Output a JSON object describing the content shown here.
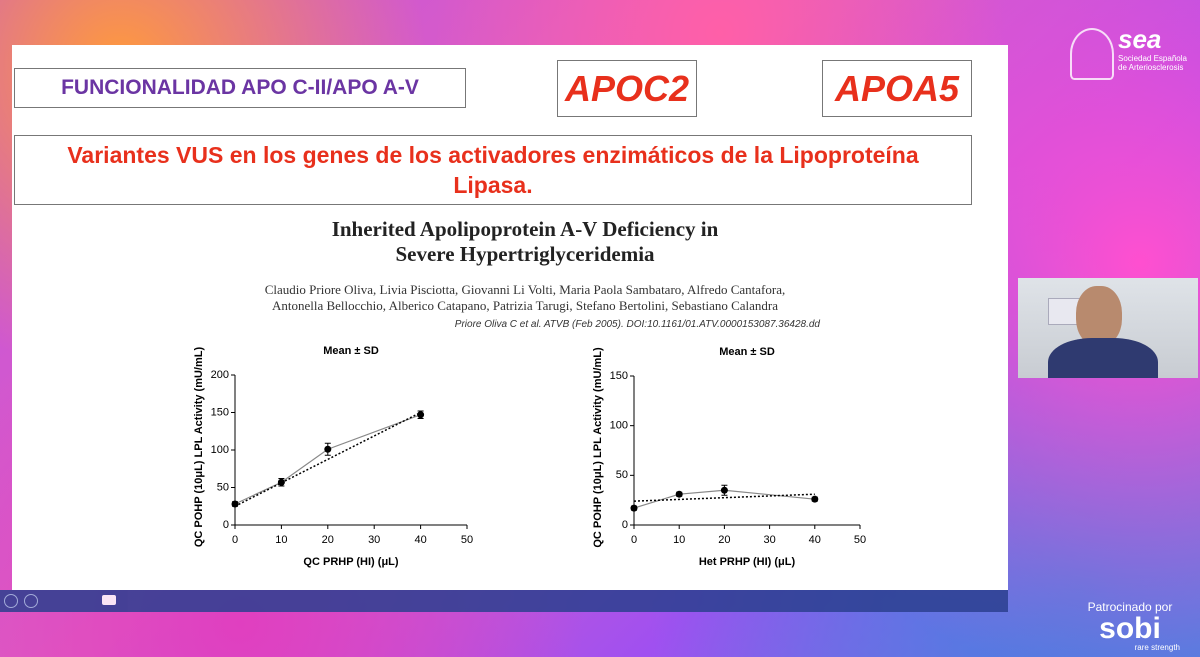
{
  "slide": {
    "section_title": "FUNCIONALIDAD APO C-II/APO A-V",
    "gene_1": "APOC2",
    "gene_2": "APOA5",
    "subtitle_lines": [
      "Variantes VUS  en los genes de los activadores enzimáticos de la Lipoproteína",
      "Lipasa."
    ],
    "paper_title_lines": [
      "Inherited Apolipoprotein A-V Deficiency in",
      "Severe Hypertriglyceridemia"
    ],
    "authors_lines": [
      "Claudio Priore Oliva, Livia Pisciotta, Giovanni Li Volti, Maria Paola Sambataro, Alfredo Cantafora,",
      "Antonella Bellocchio, Alberico Catapano, Patrizia Tarugi, Stefano Bertolini, Sebastiano Calandra"
    ],
    "citation": "Priore Oliva C et al. ATVB (Feb 2005). DOI:10.1161/01.ATV.0000153087.36428.dd"
  },
  "logo": {
    "name": "sea",
    "lines": [
      "Sociedad Española",
      "de Arteriosclerosis"
    ]
  },
  "sponsor": {
    "label": "Patrocinado por",
    "name": "sobi",
    "tagline": "rare strength"
  },
  "chart_data": [
    {
      "type": "line",
      "title": "Mean ± SD",
      "x_label": "QC PRHP (HI) (μL)",
      "y_label": "QC POHP (10μL) LPL Activity (mU/mL)",
      "x": [
        0,
        10,
        20,
        40
      ],
      "values": [
        28,
        57,
        101,
        147
      ],
      "errors": [
        3,
        5,
        8,
        5
      ],
      "color": "#888888",
      "trend": {
        "x": [
          0,
          40
        ],
        "values": [
          25,
          150
        ]
      },
      "xlim": [
        0,
        50
      ],
      "xticks": [
        0,
        10,
        20,
        30,
        40,
        50
      ],
      "ylim": [
        0,
        200
      ],
      "yticks": [
        0,
        50,
        100,
        150,
        200
      ]
    },
    {
      "type": "line",
      "title": "Mean ± SD",
      "x_label": "Het PRHP (HI) (μL)",
      "y_label": "QC POHP (10μL) LPL Activity (mU/mL)",
      "x": [
        0,
        10,
        20,
        40
      ],
      "values": [
        17,
        31,
        35,
        26
      ],
      "errors": [
        2,
        2,
        5,
        2
      ],
      "color": "#888888",
      "trend": {
        "x": [
          0,
          40
        ],
        "values": [
          24,
          31
        ]
      },
      "xlim": [
        0,
        50
      ],
      "xticks": [
        0,
        10,
        20,
        30,
        40,
        50
      ],
      "ylim": [
        0,
        150
      ],
      "yticks": [
        0,
        50,
        100,
        150
      ]
    }
  ]
}
